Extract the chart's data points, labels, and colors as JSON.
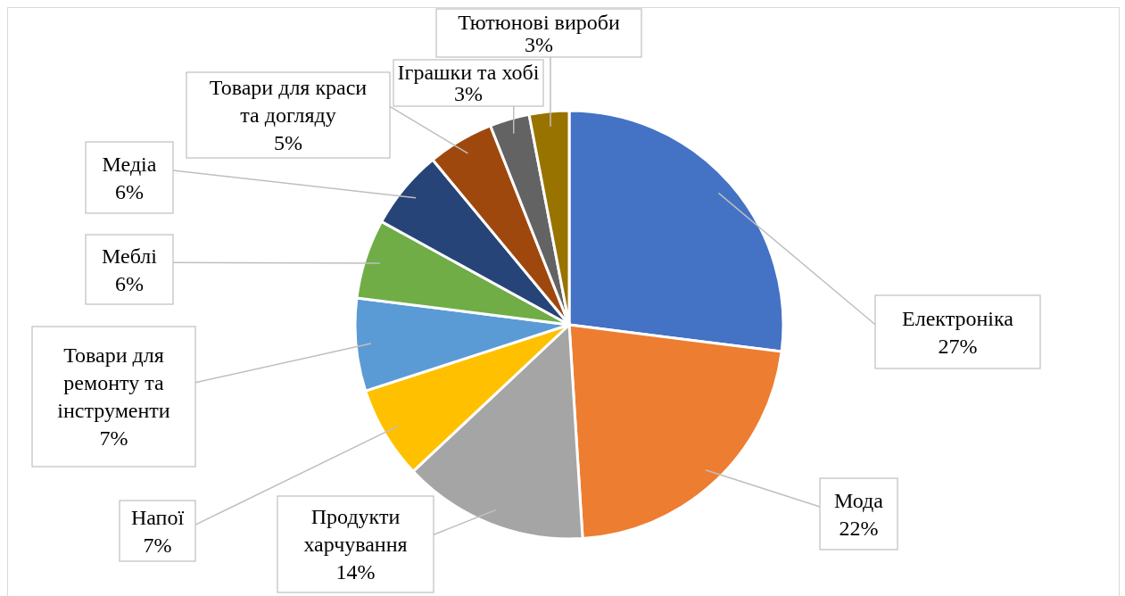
{
  "chart_data": {
    "type": "pie",
    "categories": [
      "Електроніка",
      "Мода",
      "Продукти харчування",
      "Напої",
      "Товари для ремонту та інструменти",
      "Меблі",
      "Медіа",
      "Товари для краси та догляду",
      "Іграшки та хобі",
      "Тютюнові вироби"
    ],
    "values": [
      27,
      22,
      14,
      7,
      7,
      6,
      6,
      5,
      3,
      3
    ],
    "value_labels": [
      "27%",
      "22%",
      "14%",
      "7%",
      "7%",
      "6%",
      "6%",
      "5%",
      "3%",
      "3%"
    ],
    "colors": [
      "#4472c4",
      "#ed7d31",
      "#a5a5a5",
      "#ffc000",
      "#5b9bd5",
      "#70ad47",
      "#264478",
      "#9e480e",
      "#636363",
      "#997300"
    ],
    "legend": false
  }
}
